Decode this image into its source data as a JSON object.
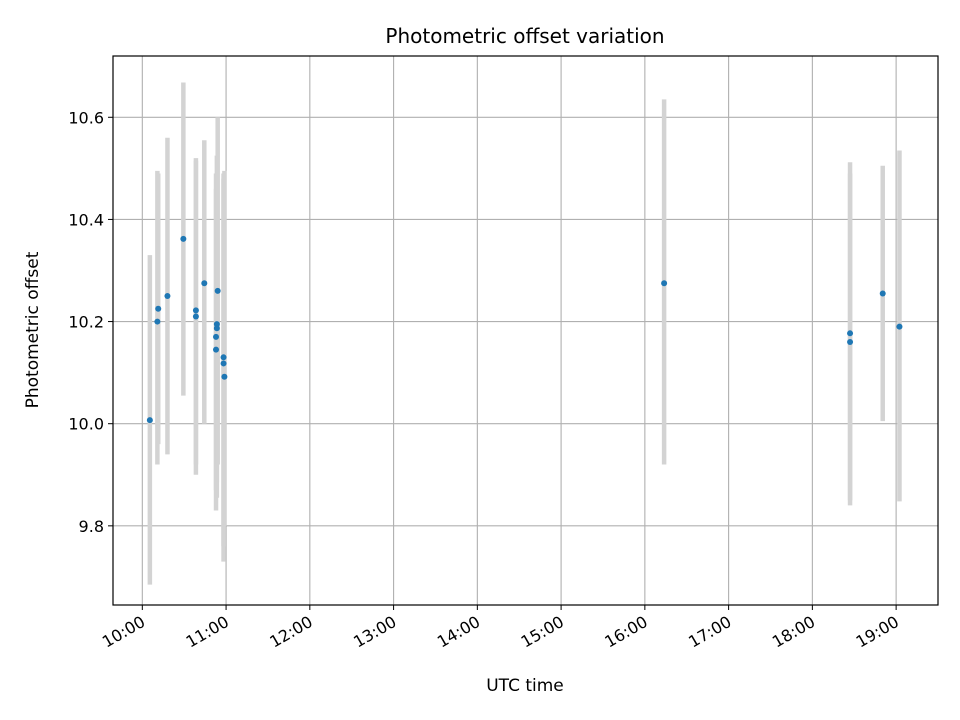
{
  "chart_data": {
    "type": "scatter",
    "title": "Photometric offset variation",
    "xlabel": "UTC time",
    "ylabel": "Photometric offset",
    "x_unit": "hours UTC",
    "xlim": [
      9.65,
      19.5
    ],
    "ylim": [
      9.645,
      10.72
    ],
    "grid": true,
    "x_ticks": [
      {
        "value": 10,
        "label": "10:00"
      },
      {
        "value": 11,
        "label": "11:00"
      },
      {
        "value": 12,
        "label": "12:00"
      },
      {
        "value": 13,
        "label": "13:00"
      },
      {
        "value": 14,
        "label": "14:00"
      },
      {
        "value": 15,
        "label": "15:00"
      },
      {
        "value": 16,
        "label": "16:00"
      },
      {
        "value": 17,
        "label": "17:00"
      },
      {
        "value": 18,
        "label": "18:00"
      },
      {
        "value": 19,
        "label": "19:00"
      }
    ],
    "y_ticks": [
      {
        "value": 9.8,
        "label": "9.8"
      },
      {
        "value": 10.0,
        "label": "10.0"
      },
      {
        "value": 10.2,
        "label": "10.2"
      },
      {
        "value": 10.4,
        "label": "10.4"
      },
      {
        "value": 10.6,
        "label": "10.6"
      }
    ],
    "point_color": "#1f77b4",
    "errorbar_color": "#d3d3d3",
    "points": [
      {
        "x": 10.09,
        "y": 10.007,
        "err_low": 9.685,
        "err_high": 10.33
      },
      {
        "x": 10.18,
        "y": 10.2,
        "err_low": 9.92,
        "err_high": 10.495
      },
      {
        "x": 10.19,
        "y": 10.225,
        "err_low": 9.96,
        "err_high": 10.49
      },
      {
        "x": 10.3,
        "y": 10.25,
        "err_low": 9.94,
        "err_high": 10.56
      },
      {
        "x": 10.49,
        "y": 10.362,
        "err_low": 10.055,
        "err_high": 10.668
      },
      {
        "x": 10.64,
        "y": 10.222,
        "err_low": 9.92,
        "err_high": 10.52
      },
      {
        "x": 10.64,
        "y": 10.21,
        "err_low": 9.9,
        "err_high": 10.515
      },
      {
        "x": 10.74,
        "y": 10.275,
        "err_low": 10.0,
        "err_high": 10.555
      },
      {
        "x": 10.88,
        "y": 10.17,
        "err_low": 9.87,
        "err_high": 10.49
      },
      {
        "x": 10.88,
        "y": 10.145,
        "err_low": 9.83,
        "err_high": 10.46
      },
      {
        "x": 10.89,
        "y": 10.195,
        "err_low": 9.855,
        "err_high": 10.525
      },
      {
        "x": 10.89,
        "y": 10.187,
        "err_low": 9.885,
        "err_high": 10.49
      },
      {
        "x": 10.9,
        "y": 10.26,
        "err_low": 9.92,
        "err_high": 10.6
      },
      {
        "x": 10.97,
        "y": 10.13,
        "err_low": 9.76,
        "err_high": 10.49
      },
      {
        "x": 10.97,
        "y": 10.118,
        "err_low": 9.73,
        "err_high": 10.48
      },
      {
        "x": 10.98,
        "y": 10.092,
        "err_low": 9.8,
        "err_high": 10.495
      },
      {
        "x": 16.23,
        "y": 10.275,
        "err_low": 9.92,
        "err_high": 10.635
      },
      {
        "x": 18.45,
        "y": 10.177,
        "err_low": 9.84,
        "err_high": 10.512
      },
      {
        "x": 18.45,
        "y": 10.16,
        "err_low": 9.85,
        "err_high": 10.49
      },
      {
        "x": 18.84,
        "y": 10.255,
        "err_low": 10.005,
        "err_high": 10.505
      },
      {
        "x": 19.04,
        "y": 10.19,
        "err_low": 9.848,
        "err_high": 10.535
      }
    ]
  }
}
